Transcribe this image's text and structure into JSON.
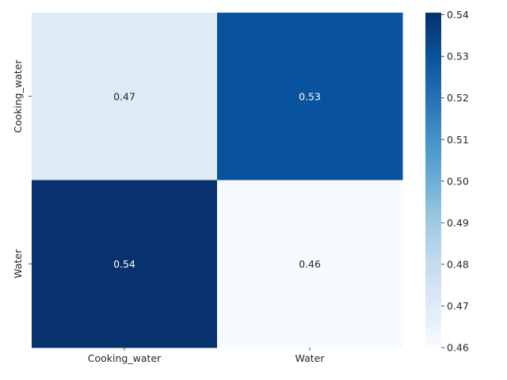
{
  "chart_data": {
    "type": "heatmap",
    "title": "",
    "xlabel": "",
    "ylabel": "",
    "x_categories": [
      "Cooking_water",
      "Water"
    ],
    "y_categories": [
      "Cooking_water",
      "Water"
    ],
    "values": [
      [
        0.47,
        0.53
      ],
      [
        0.54,
        0.46
      ]
    ],
    "annotations": [
      [
        "0.47",
        "0.53"
      ],
      [
        "0.54",
        "0.46"
      ]
    ],
    "colormap": "Blues",
    "colorbar": {
      "min": 0.46,
      "max": 0.5405,
      "ticks": [
        "0.46",
        "0.47",
        "0.48",
        "0.49",
        "0.50",
        "0.51",
        "0.52",
        "0.53",
        "0.54"
      ]
    },
    "colors": {
      "low": "#f7fbff",
      "high": "#08306b",
      "annot_dark": "#262626",
      "annot_light": "#ffffff"
    },
    "grid": false,
    "legend": "colorbar-right"
  }
}
